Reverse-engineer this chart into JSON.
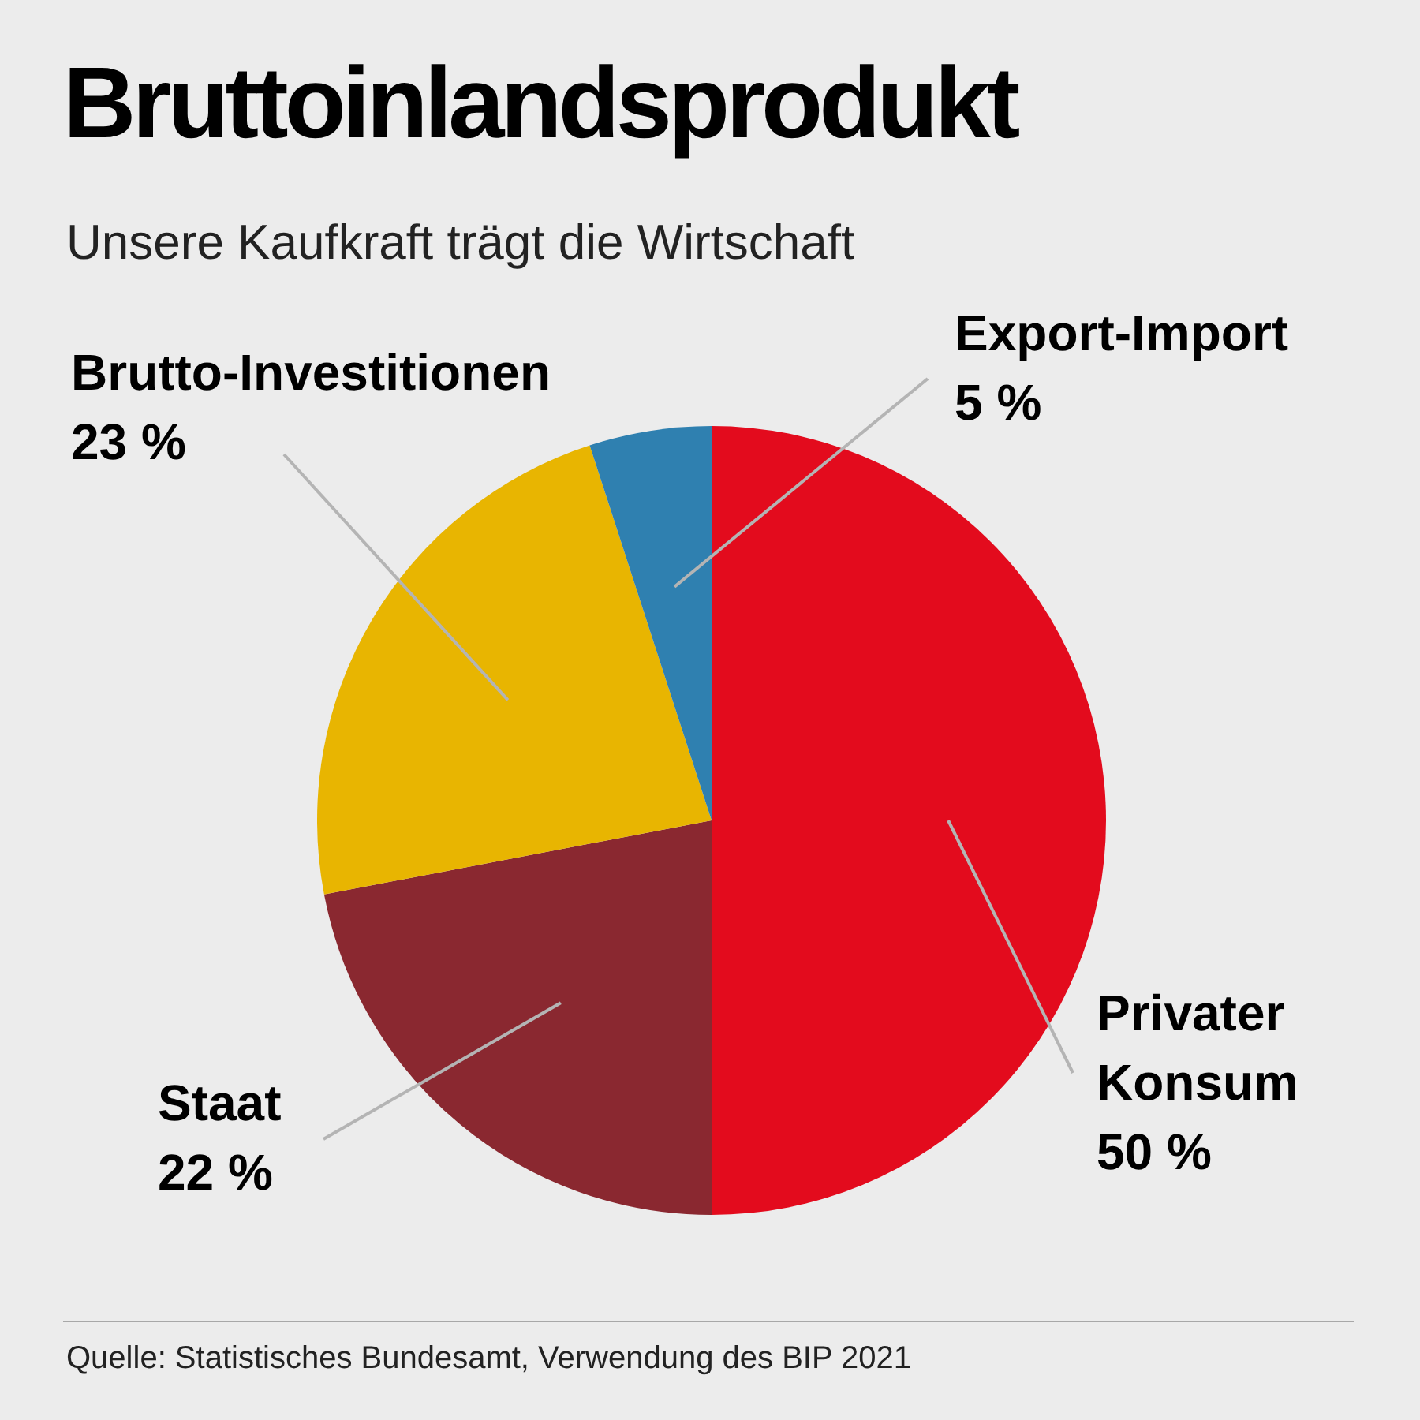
{
  "chart_data": {
    "type": "pie",
    "title": "Bruttoinlandsprodukt",
    "subtitle": "Unsere Kaufkraft trägt die Wirtschaft",
    "categories": [
      "Privater Konsum",
      "Staat",
      "Brutto-Investitionen",
      "Export-Import"
    ],
    "values": [
      50,
      22,
      23,
      5
    ],
    "colors": [
      "#e30b1d",
      "#8a2830",
      "#e8b501",
      "#2f80b0"
    ],
    "value_labels": [
      "50 %",
      "22 %",
      "23 %",
      "5 %"
    ],
    "annotations": [
      "Quelle: Statistisches Bundesamt, Verwendung des BIP 2021"
    ]
  }
}
